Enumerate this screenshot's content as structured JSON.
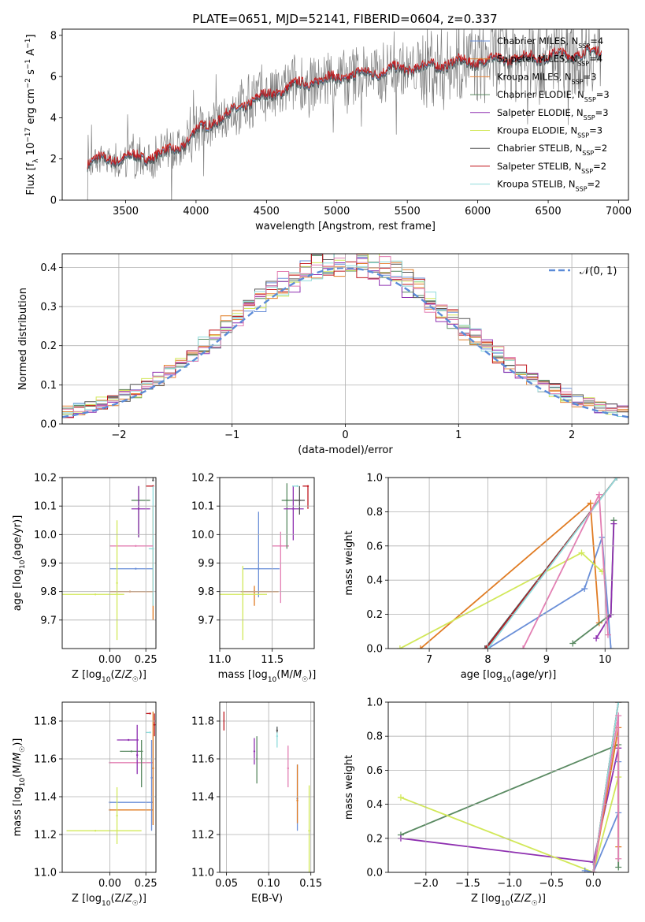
{
  "figure": {
    "title": "PLATE=0651, MJD=52141, FIBERID=0604, z=0.337"
  },
  "colors": {
    "Chabrier MILES": "#6a8fd8",
    "Salpeter MILES": "#e07b22",
    "Kroupa MILES": "#e8843a",
    "Chabrier ELODIE": "#5a8a62",
    "Salpeter ELODIE": "#8e2fb0",
    "Kroupa ELODIE": "#d2e85a",
    "Chabrier STELIB": "#555555",
    "Salpeter STELIB": "#c0181f",
    "Kroupa STELIB": "#8fdcdc",
    "data": "#808080",
    "pink": "#e37fb3"
  },
  "chart_data": [
    {
      "id": "spectrum",
      "type": "line",
      "xlabel": "wavelength [Angstrom, rest frame]",
      "ylabel": "Flux [f_λ 10^-17 erg cm^-2 s^-1 A^-1]",
      "xlim": [
        3050,
        7070
      ],
      "ylim": [
        0,
        8.3
      ],
      "xticks": [
        3500,
        4000,
        4500,
        5000,
        5500,
        6000,
        6500,
        7000
      ],
      "yticks": [
        0,
        2,
        4,
        6,
        8
      ],
      "legend_position": "top-right",
      "legend": [
        {
          "base": "Chabrier MILES, N",
          "n": "4"
        },
        {
          "base": "Salpeter MILES, N",
          "n": "4"
        },
        {
          "base": "Kroupa MILES, N",
          "n": "3"
        },
        {
          "base": "Chabrier ELODIE, N",
          "n": "3"
        },
        {
          "base": "Salpeter ELODIE, N",
          "n": "3"
        },
        {
          "base": "Kroupa ELODIE, N",
          "n": "3"
        },
        {
          "base": "Chabrier STELIB, N",
          "n": "2"
        },
        {
          "base": "Salpeter STELIB, N",
          "n": "2"
        },
        {
          "base": "Kroupa STELIB, N",
          "n": "2"
        }
      ],
      "legend_subscript": "SSP",
      "model_anchors": {
        "x": [
          3230,
          3300,
          3500,
          3700,
          3800,
          3900,
          3950,
          4000,
          4100,
          4200,
          4300,
          4400,
          4500,
          4600,
          4700,
          4800,
          4900,
          5000,
          5200,
          5400,
          5600,
          5800,
          6000,
          6200,
          6400,
          6600,
          6800,
          6880
        ],
        "y": [
          1.75,
          1.9,
          2.0,
          2.1,
          2.3,
          2.6,
          2.9,
          3.3,
          3.7,
          4.0,
          4.4,
          4.8,
          5.0,
          5.3,
          5.5,
          5.7,
          5.8,
          5.9,
          6.1,
          6.3,
          6.4,
          6.6,
          6.7,
          6.8,
          6.9,
          7.0,
          7.1,
          7.15
        ]
      }
    },
    {
      "id": "residuals",
      "type": "histogram",
      "xlabel": "(data-model)/error",
      "ylabel": "Normed distribution",
      "xlim": [
        -2.5,
        2.5
      ],
      "ylim": [
        0,
        0.435
      ],
      "xticks": [
        -2,
        -1,
        0,
        1,
        2
      ],
      "yticks": [
        0.0,
        0.1,
        0.2,
        0.3,
        0.4
      ],
      "legend_position": "top-right",
      "legend_label": "𝒩(0, 1)",
      "gaussian": {
        "mu": 0,
        "sigma": 1
      }
    },
    {
      "id": "age_vs_Z",
      "type": "scatter",
      "xlabel": "Z [log10(Z/Z☉)]",
      "ylabel": "age  [log10(age/yr)]",
      "xlim": [
        -0.33,
        0.32
      ],
      "ylim": [
        9.6,
        10.2
      ],
      "xticks": [
        0.0,
        0.25
      ],
      "yticks": [
        9.7,
        9.8,
        9.9,
        10.0,
        10.1,
        10.2
      ],
      "points": [
        {
          "model": "Chabrier MILES",
          "x": 0.18,
          "xerr": [
            0.18,
            0.12
          ],
          "y": 9.88,
          "yerr": [
            0.0,
            0.0
          ]
        },
        {
          "model": "Kroupa MILES",
          "x": 0.14,
          "xerr": [
            0.14,
            0.16
          ],
          "y": 9.8,
          "yerr": [
            0.0,
            0.0
          ]
        },
        {
          "model": "Salpeter MILES",
          "x": 0.3,
          "xerr": [
            0.0,
            0.0
          ],
          "y": 9.95,
          "yerr": [
            0.25,
            0.15
          ]
        },
        {
          "model": "Chabrier ELODIE",
          "x": 0.2,
          "xerr": [
            0.05,
            0.08
          ],
          "y": 10.12,
          "yerr": [
            0.13,
            0.05
          ]
        },
        {
          "model": "Salpeter ELODIE",
          "x": 0.2,
          "xerr": [
            0.05,
            0.08
          ],
          "y": 10.09,
          "yerr": [
            0.1,
            0.08
          ]
        },
        {
          "model": "Kroupa ELODIE",
          "x": -0.1,
          "xerr": [
            0.27,
            0.2
          ],
          "y": 9.79,
          "yerr": [
            0.0,
            0.0
          ]
        },
        {
          "model": "Chabrier STELIB",
          "x": 0.3,
          "xerr": [
            0.0,
            0.0
          ],
          "y": 10.19,
          "yerr": [
            0.0,
            0.01
          ]
        },
        {
          "model": "Salpeter STELIB",
          "x": 0.3,
          "xerr": [
            0.05,
            0.0
          ],
          "y": 10.17,
          "yerr": [
            0.0,
            0.0
          ]
        },
        {
          "model": "Kroupa STELIB",
          "x": 0.3,
          "xerr": [
            0.03,
            0.0
          ],
          "y": 9.95,
          "yerr": [
            0.2,
            0.22
          ]
        },
        {
          "model": "pink",
          "x": 0.18,
          "xerr": [
            0.18,
            0.12
          ],
          "y": 9.96,
          "yerr": [
            0.0,
            0.0
          ]
        },
        {
          "model": "Kroupa ELODIE",
          "x": 0.05,
          "xerr": [
            0.0,
            0.0
          ],
          "y": 9.83,
          "yerr": [
            0.2,
            0.22
          ]
        }
      ]
    },
    {
      "id": "age_vs_mass",
      "type": "scatter",
      "xlabel": "mass [log10(M/M☉)]",
      "xlim": [
        11.0,
        11.9
      ],
      "ylim": [
        9.6,
        10.2
      ],
      "xticks": [
        11.0,
        11.5
      ],
      "yticks": [
        9.7,
        9.8,
        9.9,
        10.0,
        10.1,
        10.2
      ],
      "points": [
        {
          "model": "Chabrier MILES",
          "x": 11.37,
          "y": 9.88,
          "xerr": [
            0.15,
            0.2
          ],
          "yerr": [
            0.1,
            0.2
          ]
        },
        {
          "model": "Salpeter MILES",
          "x": 11.33,
          "y": 9.8,
          "xerr": [
            0.13,
            0.23
          ],
          "yerr": [
            0.05,
            0.02
          ]
        },
        {
          "model": "pink",
          "x": 11.58,
          "y": 9.96,
          "xerr": [
            0.08,
            0.08
          ],
          "yerr": [
            0.2,
            0.05
          ]
        },
        {
          "model": "Chabrier ELODIE",
          "x": 11.64,
          "y": 10.12,
          "xerr": [
            0.05,
            0.1
          ],
          "yerr": [
            0.17,
            0.06
          ]
        },
        {
          "model": "Salpeter ELODIE",
          "x": 11.7,
          "y": 10.09,
          "xerr": [
            0.09,
            0.1
          ],
          "yerr": [
            0.11,
            0.08
          ]
        },
        {
          "model": "Kroupa ELODIE",
          "x": 11.22,
          "y": 9.79,
          "xerr": [
            0.23,
            0.23
          ],
          "yerr": [
            0.16,
            0.1
          ]
        },
        {
          "model": "Chabrier STELIB",
          "x": 11.76,
          "y": 10.12,
          "xerr": [
            0.05,
            0.05
          ],
          "yerr": [
            0.05,
            0.05
          ]
        },
        {
          "model": "Salpeter STELIB",
          "x": 11.84,
          "y": 10.17,
          "xerr": [
            0.05,
            0.0
          ],
          "yerr": [
            0.08,
            0.0
          ]
        },
        {
          "model": "Kroupa STELIB",
          "x": 11.74,
          "y": 10.17,
          "xerr": [
            0.05,
            0.0
          ],
          "yerr": [
            0.0,
            0.0
          ]
        }
      ]
    },
    {
      "id": "weight_vs_age",
      "type": "line",
      "xlabel": "age  [log10(age/yr)]",
      "ylabel": "mass weight",
      "xlim": [
        6.3,
        10.4
      ],
      "ylim": [
        0,
        1.0
      ],
      "xticks": [
        7,
        8,
        9,
        10
      ],
      "yticks": [
        0.0,
        0.2,
        0.4,
        0.6,
        0.8,
        1.0
      ],
      "series": [
        {
          "model": "Chabrier MILES",
          "x": [
            8.0,
            9.65,
            9.95,
            10.1
          ],
          "y": [
            0.0,
            0.35,
            0.65,
            0.0
          ]
        },
        {
          "model": "Salpeter MILES",
          "x": [
            6.85,
            9.75,
            9.9
          ],
          "y": [
            0.0,
            0.85,
            0.15
          ]
        },
        {
          "model": "Kroupa ELODIE",
          "x": [
            6.5,
            9.6,
            9.95
          ],
          "y": [
            0.0,
            0.56,
            0.45
          ]
        },
        {
          "model": "Chabrier ELODIE",
          "x": [
            9.45,
            10.1,
            10.15
          ],
          "y": [
            0.03,
            0.2,
            0.75
          ]
        },
        {
          "model": "Salpeter ELODIE",
          "x": [
            9.85,
            10.1,
            10.15
          ],
          "y": [
            0.06,
            0.2,
            0.73
          ]
        },
        {
          "model": "Chabrier STELIB",
          "x": [
            7.95,
            10.2
          ],
          "y": [
            0.0,
            1.0
          ]
        },
        {
          "model": "Salpeter STELIB",
          "x": [
            7.97,
            10.2
          ],
          "y": [
            0.0,
            1.0
          ]
        },
        {
          "model": "Kroupa STELIB",
          "x": [
            8.0,
            10.2
          ],
          "y": [
            0.0,
            1.0
          ]
        },
        {
          "model": "pink",
          "x": [
            8.6,
            9.9,
            10.05
          ],
          "y": [
            0.0,
            0.9,
            0.08
          ]
        }
      ]
    },
    {
      "id": "mass_vs_Z",
      "type": "scatter",
      "xlabel": "Z [log10(Z/Z☉)]",
      "ylabel": "mass [log10(M/M☉)]",
      "xlim": [
        -0.33,
        0.32
      ],
      "ylim": [
        11.0,
        11.9
      ],
      "xticks": [
        0.0,
        0.25
      ],
      "yticks": [
        11.0,
        11.2,
        11.4,
        11.6,
        11.8
      ],
      "points": [
        {
          "model": "Chabrier MILES",
          "x": 0.0,
          "xerr": [
            0.0,
            0.3
          ],
          "y": 11.37,
          "yerr": [
            0.0,
            0.0
          ]
        },
        {
          "model": "Salpeter MILES",
          "x": 0.0,
          "xerr": [
            0.0,
            0.3
          ],
          "y": 11.33,
          "yerr": [
            0.0,
            0.0
          ]
        },
        {
          "model": "Kroupa ELODIE",
          "x": -0.1,
          "xerr": [
            0.2,
            0.32
          ],
          "y": 11.22,
          "yerr": [
            0.0,
            0.0
          ]
        },
        {
          "model": "Kroupa ELODIE",
          "x": 0.05,
          "xerr": [
            0.0,
            0.0
          ],
          "y": 11.3,
          "yerr": [
            0.15,
            0.15
          ]
        },
        {
          "model": "pink",
          "x": 0.0,
          "xerr": [
            0.0,
            0.3
          ],
          "y": 11.58,
          "yerr": [
            0.0,
            0.0
          ]
        },
        {
          "model": "Chabrier ELODIE",
          "x": 0.15,
          "xerr": [
            0.08,
            0.08
          ],
          "y": 11.64,
          "yerr": [
            0.0,
            0.0
          ]
        },
        {
          "model": "Salpeter ELODIE",
          "x": 0.13,
          "xerr": [
            0.08,
            0.07
          ],
          "y": 11.7,
          "yerr": [
            0.0,
            0.0
          ]
        },
        {
          "model": "Chabrier ELODIE",
          "x": 0.22,
          "xerr": [
            0.0,
            0.0
          ],
          "y": 11.6,
          "yerr": [
            0.15,
            0.1
          ]
        },
        {
          "model": "Salpeter ELODIE",
          "x": 0.19,
          "xerr": [
            0.0,
            0.0
          ],
          "y": 11.62,
          "yerr": [
            0.1,
            0.16
          ]
        },
        {
          "model": "Salpeter STELIB",
          "x": 0.28,
          "xerr": [
            0.03,
            0.0
          ],
          "y": 11.84,
          "yerr": [
            0.0,
            0.0
          ]
        },
        {
          "model": "Kroupa STELIB",
          "x": 0.28,
          "xerr": [
            0.03,
            0.0
          ],
          "y": 11.74,
          "yerr": [
            0.0,
            0.0
          ]
        },
        {
          "model": "Salpeter MILES",
          "x": 0.3,
          "xerr": [
            0.0,
            0.0
          ],
          "y": 11.55,
          "yerr": [
            0.3,
            0.3
          ]
        },
        {
          "model": "Chabrier MILES",
          "x": 0.29,
          "xerr": [
            0.0,
            0.0
          ],
          "y": 11.5,
          "yerr": [
            0.28,
            0.2
          ]
        },
        {
          "model": "Salpeter STELIB",
          "x": 0.31,
          "xerr": [
            0.0,
            0.0
          ],
          "y": 11.78,
          "yerr": [
            0.06,
            0.06
          ]
        }
      ]
    },
    {
      "id": "mass_vs_ebv",
      "type": "scatter",
      "xlabel": "E(B-V)",
      "xlim": [
        0.042,
        0.154
      ],
      "ylim": [
        11.0,
        11.9
      ],
      "xticks": [
        0.05,
        0.1,
        0.15
      ],
      "yticks": [
        11.0,
        11.2,
        11.4,
        11.6,
        11.8
      ],
      "points": [
        {
          "model": "Salpeter STELIB",
          "x": 0.047,
          "y": 11.8,
          "yerr": [
            0.05,
            0.05
          ]
        },
        {
          "model": "Salpeter ELODIE",
          "x": 0.083,
          "y": 11.64,
          "yerr": [
            0.07,
            0.07
          ]
        },
        {
          "model": "Chabrier ELODIE",
          "x": 0.086,
          "y": 11.6,
          "yerr": [
            0.13,
            0.12
          ]
        },
        {
          "model": "Kroupa STELIB",
          "x": 0.11,
          "y": 11.72,
          "yerr": [
            0.06,
            0.05
          ]
        },
        {
          "model": "Chabrier STELIB",
          "x": 0.11,
          "y": 11.75,
          "yerr": [
            0.01,
            0.02
          ]
        },
        {
          "model": "pink",
          "x": 0.123,
          "y": 11.55,
          "yerr": [
            0.1,
            0.12
          ]
        },
        {
          "model": "Chabrier MILES",
          "x": 0.134,
          "y": 11.39,
          "yerr": [
            0.17,
            0.18
          ]
        },
        {
          "model": "Salpeter MILES",
          "x": 0.134,
          "y": 11.38,
          "yerr": [
            0.12,
            0.19
          ]
        },
        {
          "model": "Kroupa ELODIE",
          "x": 0.148,
          "y": 11.22,
          "yerr": [
            0.22,
            0.24
          ]
        }
      ]
    },
    {
      "id": "weight_vs_Z",
      "type": "line",
      "xlabel": "Z [log10(Z/Z☉)]",
      "ylabel": "mass weight",
      "xlim": [
        -2.45,
        0.42
      ],
      "ylim": [
        0,
        1.0
      ],
      "xticks": [
        -2.0,
        -1.5,
        -1.0,
        -0.5,
        0.0
      ],
      "yticks": [
        0.0,
        0.2,
        0.4,
        0.6,
        0.8,
        1.0
      ],
      "series": [
        {
          "model": "Chabrier ELODIE",
          "x": [
            -2.3,
            0.3,
            0.3
          ],
          "y": [
            0.22,
            0.75,
            0.03
          ]
        },
        {
          "model": "Salpeter ELODIE",
          "x": [
            -2.3,
            0.0,
            0.3
          ],
          "y": [
            0.2,
            0.06,
            0.73
          ]
        },
        {
          "model": "Kroupa ELODIE",
          "x": [
            -2.3,
            0.0,
            0.3
          ],
          "y": [
            0.44,
            0.0,
            0.56
          ]
        },
        {
          "model": "Chabrier MILES",
          "x": [
            -0.1,
            0.0,
            0.3,
            0.3
          ],
          "y": [
            0.01,
            0.0,
            0.35,
            0.65
          ]
        },
        {
          "model": "Salpeter MILES",
          "x": [
            0.0,
            0.3,
            0.3
          ],
          "y": [
            0.0,
            0.85,
            0.15
          ]
        },
        {
          "model": "Chabrier STELIB",
          "x": [
            0.0,
            0.3
          ],
          "y": [
            0.0,
            1.0
          ]
        },
        {
          "model": "Salpeter STELIB",
          "x": [
            0.0,
            0.3
          ],
          "y": [
            0.0,
            1.0
          ]
        },
        {
          "model": "Kroupa STELIB",
          "x": [
            0.0,
            0.3
          ],
          "y": [
            0.0,
            1.0
          ]
        },
        {
          "model": "pink",
          "x": [
            0.0,
            0.3,
            0.3
          ],
          "y": [
            0.0,
            0.92,
            0.08
          ]
        }
      ]
    }
  ]
}
